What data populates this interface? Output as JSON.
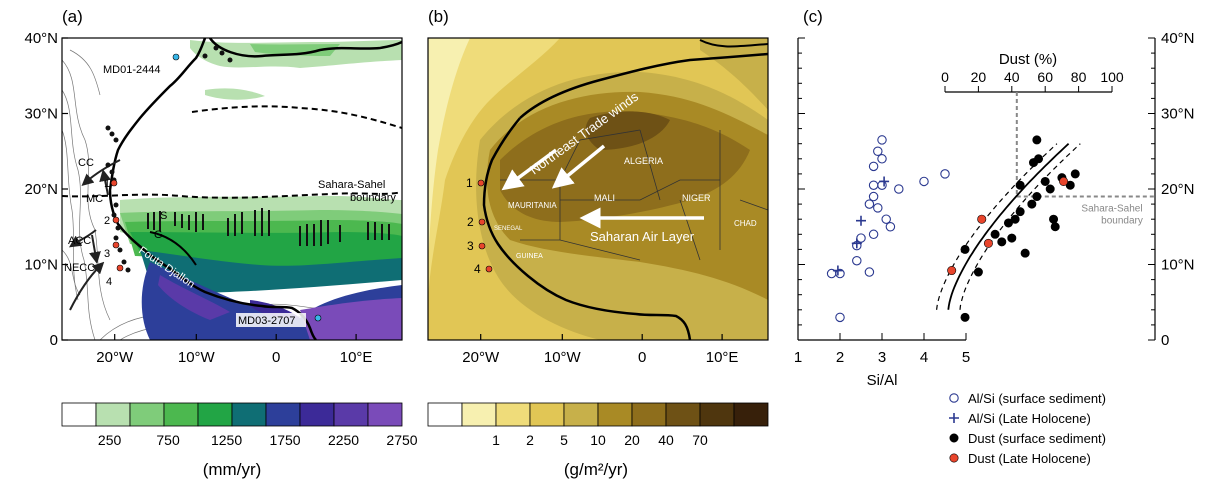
{
  "panel_a": {
    "label": "(a)",
    "x_ticks": [
      "20°W",
      "10°W",
      "0",
      "10°E"
    ],
    "y_ticks": [
      "0",
      "10°N",
      "20°N",
      "30°N",
      "40°N"
    ],
    "colorbar": {
      "colors": [
        "#ffffff",
        "#b8e0b0",
        "#7fcc7a",
        "#4cb84f",
        "#22a545",
        "#0f6e74",
        "#2d3f9a",
        "#3c2a98",
        "#5a3aa8",
        "#7a4bb9"
      ],
      "ticks": [
        "250",
        "750",
        "1250",
        "1750",
        "2250",
        "2750"
      ],
      "unit": "(mm/yr)"
    },
    "labels": {
      "md01": "MD01-2444",
      "md03": "MD03-2707",
      "boundary_line1": "Sahara-Sahel",
      "boundary_line2": "boundary",
      "cc": "CC",
      "mc": "MC",
      "acc": "ACC",
      "necc": "NECC",
      "s": "S",
      "g": "G",
      "fouta": "Fouta Djallon",
      "site1": "1",
      "site2": "2",
      "site3": "3",
      "site4": "4"
    }
  },
  "panel_b": {
    "label": "(b)",
    "x_ticks": [
      "20°W",
      "10°W",
      "0",
      "10°E"
    ],
    "colorbar": {
      "colors": [
        "#ffffff",
        "#f7f0b0",
        "#efdc7a",
        "#e1c655",
        "#c7b04a",
        "#a98a25",
        "#8e6e1c",
        "#6e5115",
        "#4f360e",
        "#37200a"
      ],
      "ticks": [
        "1",
        "2",
        "5",
        "10",
        "20",
        "40",
        "70"
      ],
      "unit": "(g/m²/yr)"
    },
    "labels": {
      "trade_winds": "Northeast Trade winds",
      "sal": "Saharan Air Layer",
      "algeria": "ALGERIA",
      "mali": "MALI",
      "niger": "NIGER",
      "mauritania": "MAURITANIA",
      "chad": "CHAD",
      "senegal": "SENEGAL",
      "guinea": "GUINEA",
      "site1": "1",
      "site2": "2",
      "site3": "3",
      "site4": "4"
    }
  },
  "chart_data": {
    "type": "scatter",
    "label": "(c)",
    "xlabel": "Si/Al",
    "x_ticks": [
      "1",
      "2",
      "3",
      "4",
      "5"
    ],
    "xlim": [
      1,
      5
    ],
    "top_xlabel": "Dust (%)",
    "top_ticks": [
      "0",
      "20",
      "40",
      "60",
      "80",
      "100"
    ],
    "top_xlim": [
      0,
      100
    ],
    "y_ticks": [
      "0",
      "10°N",
      "20°N",
      "30°N",
      "40°N"
    ],
    "ylim": [
      0,
      40
    ],
    "boundary_note_line1": "Sahara-Sahel",
    "boundary_note_line2": "boundary",
    "boundary_lat": 19,
    "dust_at_boundary": 43,
    "series": [
      {
        "name": "Al/Si (surface sediment)",
        "color": "#2b3990",
        "marker": "open-circle",
        "points": [
          [
            3.0,
            26.5
          ],
          [
            2.9,
            25.0
          ],
          [
            3.0,
            24.0
          ],
          [
            2.8,
            23.0
          ],
          [
            4.5,
            22.0
          ],
          [
            4.0,
            21.0
          ],
          [
            2.8,
            20.5
          ],
          [
            3.0,
            20.5
          ],
          [
            3.4,
            20.0
          ],
          [
            2.8,
            19.0
          ],
          [
            2.7,
            18.0
          ],
          [
            2.9,
            17.5
          ],
          [
            3.1,
            16.0
          ],
          [
            3.2,
            15.0
          ],
          [
            2.8,
            14.0
          ],
          [
            2.5,
            13.5
          ],
          [
            2.4,
            12.5
          ],
          [
            2.4,
            10.5
          ],
          [
            2.7,
            9.0
          ],
          [
            1.8,
            8.8
          ],
          [
            2.0,
            8.8
          ],
          [
            2.0,
            3.0
          ]
        ]
      },
      {
        "name": "Al/Si (Late Holocene)",
        "color": "#2b3990",
        "marker": "plus",
        "points": [
          [
            3.05,
            21.0
          ],
          [
            2.5,
            15.8
          ],
          [
            2.4,
            12.8
          ],
          [
            1.95,
            9.2
          ]
        ]
      },
      {
        "name": "Dust (surface sediment)",
        "color": "#000000",
        "marker": "filled-circle",
        "points": [
          [
            55,
            26.5
          ],
          [
            56,
            24.0
          ],
          [
            53,
            23.5
          ],
          [
            78,
            22.0
          ],
          [
            70,
            21.5
          ],
          [
            60,
            21.0
          ],
          [
            45,
            20.5
          ],
          [
            75,
            20.5
          ],
          [
            63,
            20.0
          ],
          [
            55,
            19.0
          ],
          [
            52,
            18.0
          ],
          [
            45,
            17.0
          ],
          [
            42,
            16.0
          ],
          [
            65,
            16.0
          ],
          [
            38,
            15.5
          ],
          [
            66,
            15.0
          ],
          [
            30,
            14.0
          ],
          [
            40,
            13.5
          ],
          [
            34,
            13.0
          ],
          [
            12,
            12.0
          ],
          [
            48,
            11.5
          ],
          [
            20,
            9.0
          ],
          [
            12,
            3.0
          ]
        ]
      },
      {
        "name": "Dust (Late Holocene)",
        "color": "#e8452c",
        "marker": "filled-circle",
        "points": [
          [
            71,
            21.0
          ],
          [
            22,
            16.0
          ],
          [
            26,
            12.8
          ],
          [
            4,
            9.2
          ]
        ]
      }
    ]
  }
}
